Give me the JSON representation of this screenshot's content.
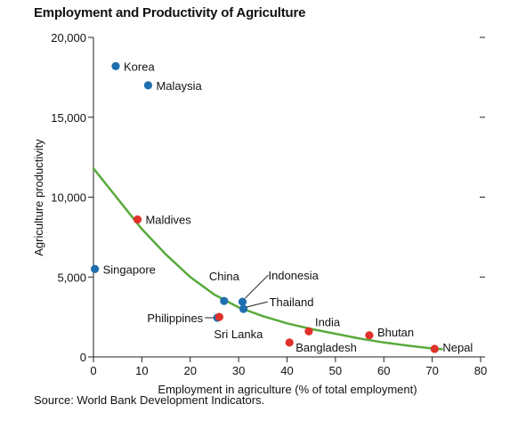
{
  "chart_data": {
    "type": "scatter",
    "title": "Employment and Productivity of Agriculture",
    "xlabel": "Employment in agriculture (% of total employment)",
    "ylabel": "Agriculture productivity",
    "xlim": [
      0,
      80
    ],
    "ylim": [
      0,
      20000
    ],
    "x_ticks": [
      0,
      10,
      20,
      30,
      40,
      50,
      60,
      70,
      80
    ],
    "y_ticks": [
      0,
      5000,
      10000,
      15000,
      20000
    ],
    "y_tick_labels": [
      "0",
      "5,000",
      "10,000",
      "15,000",
      "20,000"
    ],
    "grid": false,
    "colors": {
      "blue": "#1f6fb0",
      "red": "#e0312b",
      "trend": "#5aaa3c"
    },
    "points": [
      {
        "label": "Korea",
        "x": 4.6,
        "y": 18200,
        "color": "blue"
      },
      {
        "label": "Malaysia",
        "x": 11.3,
        "y": 17000,
        "color": "blue"
      },
      {
        "label": "Maldives",
        "x": 9.1,
        "y": 8600,
        "color": "red"
      },
      {
        "label": "Singapore",
        "x": 0.3,
        "y": 5500,
        "color": "blue"
      },
      {
        "label": "China",
        "x": 27.0,
        "y": 3500,
        "color": "blue"
      },
      {
        "label": "Indonesia",
        "x": 30.8,
        "y": 3450,
        "color": "blue"
      },
      {
        "label": "Thailand",
        "x": 31.0,
        "y": 3000,
        "color": "blue"
      },
      {
        "label": "Philippines",
        "x": 25.6,
        "y": 2450,
        "color": "blue"
      },
      {
        "label": "Sri Lanka",
        "x": 26.0,
        "y": 2500,
        "color": "red"
      },
      {
        "label": "India",
        "x": 44.5,
        "y": 1600,
        "color": "red"
      },
      {
        "label": "Bangladesh",
        "x": 40.5,
        "y": 900,
        "color": "red"
      },
      {
        "label": "Bhutan",
        "x": 57.0,
        "y": 1350,
        "color": "red"
      },
      {
        "label": "Nepal",
        "x": 70.5,
        "y": 500,
        "color": "red"
      }
    ],
    "trend_line": {
      "x": [
        0,
        5,
        10,
        15,
        20,
        25,
        30,
        35,
        40,
        45,
        50,
        55,
        60,
        65,
        70,
        72
      ],
      "y": [
        11800,
        9900,
        8000,
        6400,
        5000,
        3900,
        3100,
        2550,
        2100,
        1750,
        1450,
        1150,
        900,
        700,
        530,
        480
      ]
    }
  },
  "source_note": "Source: World Bank Development Indicators."
}
